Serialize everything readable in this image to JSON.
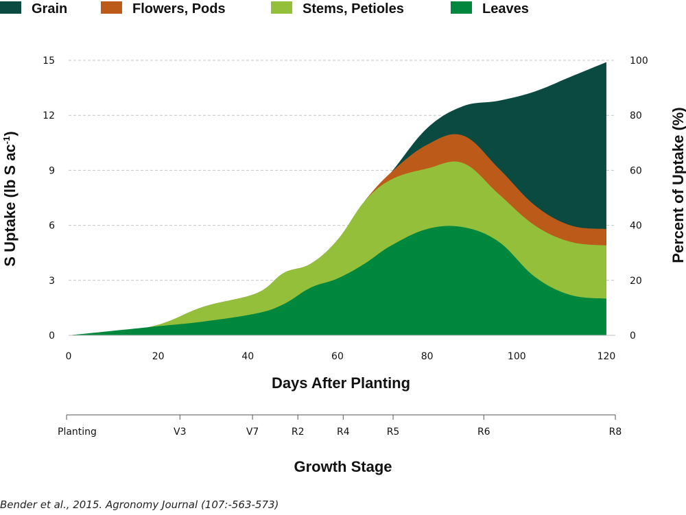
{
  "chart_data": {
    "type": "area",
    "stacked": true,
    "xlabel": "Days After Planting",
    "ylabel": "S Uptake  (lb S ac",
    "ylabel_sup": "-1",
    "ylabel_close": ")",
    "y2label": "Percent of Uptake (%)",
    "xlim": [
      0,
      122
    ],
    "ylim": [
      0,
      15
    ],
    "y2lim": [
      0,
      100
    ],
    "x_ticks": [
      "0",
      "20",
      "40",
      "60",
      "80",
      "100",
      "120"
    ],
    "y_ticks": [
      "0",
      "3",
      "6",
      "9",
      "12",
      "15"
    ],
    "y2_ticks": [
      "0",
      "20",
      "40",
      "60",
      "80",
      "100"
    ],
    "grid": "horizontal dashed",
    "legend_position": "top",
    "x": [
      0,
      18,
      30,
      42,
      48,
      54,
      60,
      66,
      72,
      80,
      88,
      96,
      104,
      112,
      120
    ],
    "series": [
      {
        "name": "Leaves",
        "color": "#00873e",
        "values": [
          0,
          0.45,
          0.75,
          1.2,
          1.7,
          2.6,
          3.1,
          3.9,
          4.9,
          5.8,
          5.9,
          5.1,
          3.2,
          2.2,
          2.0
        ]
      },
      {
        "name": "Stems, Petioles",
        "color": "#94bf3a",
        "values": [
          0,
          0,
          0.8,
          1.1,
          1.7,
          1.3,
          2.1,
          3.4,
          3.6,
          3.3,
          3.5,
          2.6,
          2.8,
          2.9,
          2.9
        ]
      },
      {
        "name": "Flowers, Pods",
        "color": "#bb5a19",
        "values": [
          0,
          0,
          0,
          0,
          0,
          0,
          0,
          0,
          0.4,
          1.3,
          1.5,
          1.4,
          1.1,
          0.9,
          0.9
        ]
      },
      {
        "name": "Grain",
        "color": "#0b4a40",
        "values": [
          0,
          0,
          0,
          0,
          0,
          0,
          0,
          0,
          0,
          0.9,
          1.6,
          3.7,
          6.2,
          8.1,
          9.1
        ]
      }
    ],
    "stage_axis": {
      "title": "Growth Stage",
      "stages": [
        {
          "label": "Planting",
          "day": 0
        },
        {
          "label": "V3",
          "day": 25
        },
        {
          "label": "V7",
          "day": 41
        },
        {
          "label": "R2",
          "day": 51
        },
        {
          "label": "R4",
          "day": 61
        },
        {
          "label": "R5",
          "day": 72
        },
        {
          "label": "R6",
          "day": 92
        },
        {
          "label": "R8",
          "day": 121
        }
      ]
    }
  },
  "source": "Bender et al., 2015. Agronomy Journal (107:-563-573)"
}
